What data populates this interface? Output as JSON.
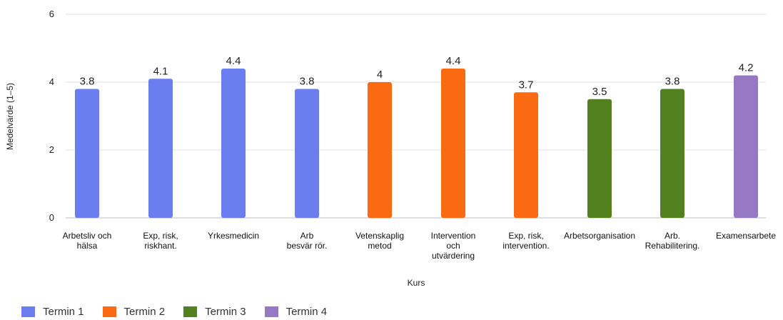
{
  "chart_data": {
    "type": "bar",
    "xlabel": "Kurs",
    "ylabel": "Medelvärde (1–5)",
    "ylim": [
      0,
      6
    ],
    "yticks": [
      0,
      2,
      4,
      6
    ],
    "grid": true,
    "legend_position": "bottom-left",
    "categories": [
      [
        "Arbetsliv och",
        "hälsa"
      ],
      [
        "Exp, risk,",
        "riskhant."
      ],
      [
        "Yrkesmedicin"
      ],
      [
        "Arb",
        "besvär rör."
      ],
      [
        "Vetenskaplig",
        "metod"
      ],
      [
        "Intervention",
        "och",
        "utvärdering"
      ],
      [
        "Exp, risk,",
        "intervention."
      ],
      [
        "Arbetsorganisation"
      ],
      [
        "Arb.",
        "Rehabilitering."
      ],
      [
        "Examensarbete"
      ]
    ],
    "values": [
      3.8,
      4.1,
      4.4,
      3.8,
      4,
      4.4,
      3.7,
      3.5,
      3.8,
      4.2
    ],
    "value_labels": [
      "3.8",
      "4.1",
      "4.4",
      "3.8",
      "4",
      "4.4",
      "3.7",
      "3.5",
      "3.8",
      "4.2"
    ],
    "bar_group": [
      0,
      0,
      0,
      0,
      1,
      1,
      1,
      2,
      2,
      3
    ],
    "groups": [
      {
        "name": "Termin 1",
        "color": "#6a7ef0"
      },
      {
        "name": "Termin 2",
        "color": "#f96a12"
      },
      {
        "name": "Termin 3",
        "color": "#54811f"
      },
      {
        "name": "Termin 4",
        "color": "#9678c4"
      }
    ]
  }
}
